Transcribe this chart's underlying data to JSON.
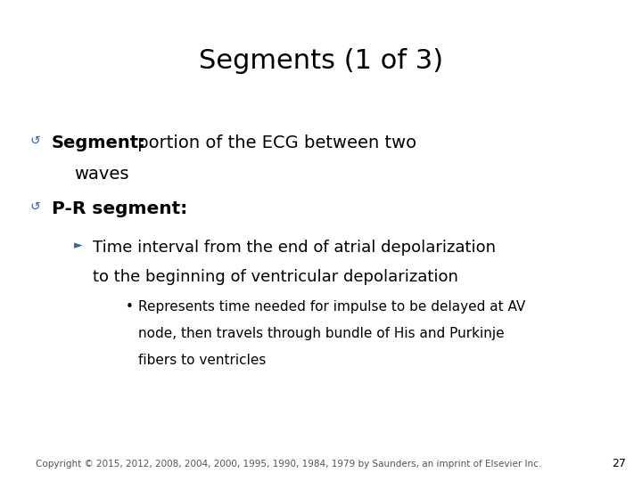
{
  "title": "Segments (1 of 3)",
  "title_fontsize": 22,
  "title_color": "#000000",
  "background_color": "#ffffff",
  "bullet_color": "#3366aa",
  "body_fontsize": 14,
  "sub_fontsize": 13,
  "subsub_fontsize": 11,
  "copyright_fontsize": 7.5,
  "copyright": "Copyright © 2015, 2012, 2008, 2004, 2000, 1995, 1990, 1984, 1979 by Saunders, an imprint of Elsevier Inc.",
  "page_number": "27",
  "bullet_icon": "↺",
  "arrow_icon": "►",
  "dot_icon": "•",
  "b1_bold": "Segment:",
  "b1_rest": " portion of the ECG between two",
  "b1_rest2": "waves",
  "b2_bold": "P-R segment:",
  "sub1_line1": "Time interval from the end of atrial depolarization",
  "sub1_line2": "to the beginning of ventricular depolarization",
  "subsub_line1": "Represents time needed for impulse to be delayed at AV",
  "subsub_line2": "node, then travels through bundle of His and Purkinje",
  "subsub_line3": "fibers to ventricles"
}
